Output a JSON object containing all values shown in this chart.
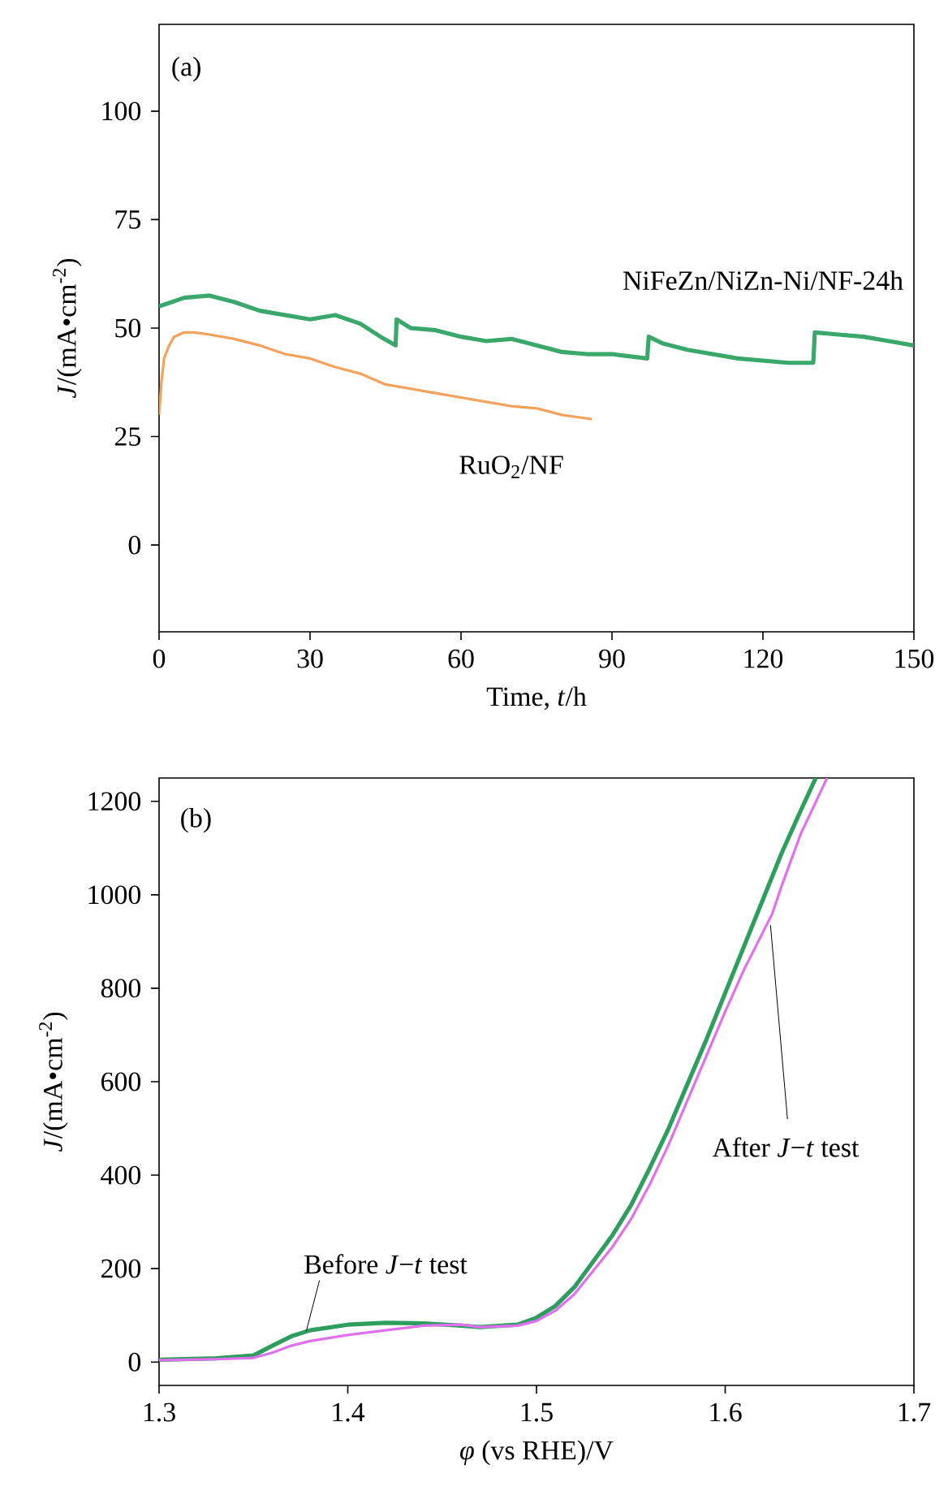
{
  "chart_data": [
    {
      "type": "line",
      "xlabel": "Time, *t*/h",
      "ylabel": "*J*/(mA•cm$^{-2}$)",
      "xlim": [
        0,
        150
      ],
      "ylim": [
        -20,
        120
      ],
      "xticks": [
        0,
        30,
        60,
        90,
        120,
        150
      ],
      "yticks": [
        0,
        25,
        50,
        75,
        100
      ],
      "grid": false,
      "legend": false,
      "annotations": [
        "(a)"
      ],
      "series": [
        {
          "name": "NiFeZn/NiZn-Ni/NF-24h",
          "color": "#3aa86b",
          "x": [
            0,
            5,
            10,
            15,
            20,
            25,
            30,
            35,
            40,
            44,
            47,
            47.2,
            50,
            55,
            60,
            65,
            70,
            75,
            80,
            85,
            90,
            97,
            97.3,
            100,
            105,
            110,
            115,
            120,
            125,
            130,
            130.3,
            135,
            140,
            145,
            150
          ],
          "values": [
            55,
            57,
            57.5,
            56,
            54,
            53,
            52,
            53,
            51,
            48,
            46,
            52,
            50,
            49.5,
            48,
            47,
            47.5,
            46,
            44.5,
            44,
            44,
            43,
            48,
            46.5,
            45,
            44,
            43,
            42.5,
            42,
            42,
            49,
            48.5,
            48,
            47,
            46
          ]
        },
        {
          "name": "RuO$_{2}$/NF",
          "color": "#f4a25c",
          "x": [
            0,
            0.5,
            1,
            2,
            3,
            5,
            7,
            10,
            15,
            20,
            25,
            30,
            35,
            40,
            45,
            50,
            55,
            60,
            65,
            70,
            75,
            80,
            83,
            86
          ],
          "values": [
            30,
            38,
            43,
            46,
            48,
            49,
            49,
            48.5,
            47.5,
            46,
            44,
            43,
            41,
            39.5,
            37,
            36,
            35,
            34,
            33,
            32,
            31.5,
            30,
            29.5,
            29
          ]
        }
      ]
    },
    {
      "type": "line",
      "xlabel": "*φ* (vs RHE)/V",
      "ylabel": "*J*/(mA•cm$^{-2}$)",
      "xlim": [
        1.3,
        1.7
      ],
      "ylim": [
        -50,
        1250
      ],
      "xticks": [
        1.3,
        1.4,
        1.5,
        1.6,
        1.7
      ],
      "yticks": [
        0,
        200,
        400,
        600,
        800,
        1000,
        1200
      ],
      "grid": false,
      "legend": false,
      "annotations": [
        "(b)"
      ],
      "series": [
        {
          "name": "Before *J*−*t* test",
          "color": "#2e9e5e",
          "x": [
            1.3,
            1.33,
            1.35,
            1.36,
            1.37,
            1.38,
            1.4,
            1.42,
            1.44,
            1.46,
            1.47,
            1.49,
            1.5,
            1.51,
            1.52,
            1.53,
            1.54,
            1.55,
            1.56,
            1.57,
            1.58,
            1.59,
            1.6,
            1.61,
            1.62,
            1.63,
            1.64,
            1.648
          ],
          "values": [
            5,
            8,
            14,
            35,
            55,
            68,
            80,
            84,
            83,
            78,
            75,
            80,
            95,
            120,
            160,
            215,
            270,
            335,
            415,
            500,
            595,
            690,
            790,
            890,
            990,
            1090,
            1180,
            1250
          ]
        },
        {
          "name": "After *J*−*t* test",
          "color": "#e070f0",
          "x": [
            1.3,
            1.33,
            1.35,
            1.36,
            1.37,
            1.38,
            1.4,
            1.42,
            1.44,
            1.46,
            1.47,
            1.49,
            1.5,
            1.51,
            1.52,
            1.53,
            1.54,
            1.55,
            1.56,
            1.57,
            1.58,
            1.59,
            1.6,
            1.61,
            1.62,
            1.625,
            1.63,
            1.64,
            1.654
          ],
          "values": [
            4,
            6,
            9,
            20,
            35,
            45,
            58,
            68,
            78,
            80,
            75,
            78,
            88,
            110,
            145,
            195,
            245,
            305,
            380,
            465,
            560,
            655,
            750,
            840,
            920,
            960,
            1020,
            1130,
            1250
          ]
        }
      ]
    }
  ]
}
